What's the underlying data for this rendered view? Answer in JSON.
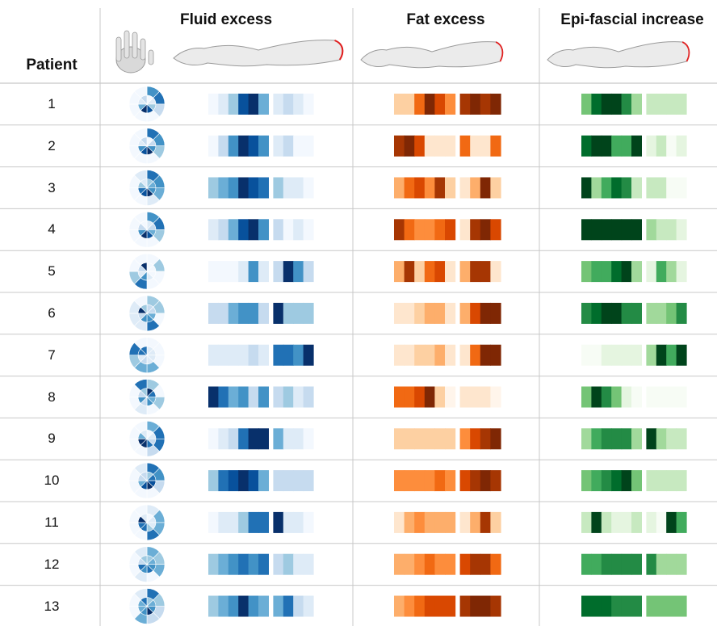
{
  "headers": {
    "patient": "Patient",
    "fluid": "Fluid excess",
    "fat": "Fat excess",
    "epi": "Epi-fascial increase"
  },
  "colors": {
    "blue": [
      "#f3f8fe",
      "#deebf7",
      "#c6dbef",
      "#9ecae1",
      "#6baed6",
      "#4292c6",
      "#2171b5",
      "#08519c",
      "#08306b"
    ],
    "orange": [
      "#fff5eb",
      "#fee6ce",
      "#fdd0a2",
      "#fdae6b",
      "#fd8d3c",
      "#f16913",
      "#d94801",
      "#a63603",
      "#7f2704"
    ],
    "green": [
      "#f7fcf5",
      "#e5f5e0",
      "#c7e9c0",
      "#a1d99b",
      "#74c476",
      "#41ab5d",
      "#238b45",
      "#006d2c",
      "#00441b"
    ],
    "grid": "#c8c8c8",
    "arm_outline": "#9a9a9a",
    "arm_tip": "#e02020"
  },
  "chart_data": {
    "type": "heatmap",
    "rows": [
      "1",
      "2",
      "3",
      "4",
      "5",
      "6",
      "7",
      "8",
      "9",
      "10",
      "11",
      "12",
      "13"
    ],
    "columns": [
      "Fluid excess",
      "Fat excess",
      "Epi-fascial increase"
    ],
    "note": "Each strip: 6 cells (forearm/elbow segment), gap, 4 cells (upper arm). Intensity 0-8.",
    "fluid": [
      [
        0,
        1,
        3,
        7,
        8,
        4,
        1,
        2,
        1,
        0
      ],
      [
        0,
        2,
        5,
        8,
        7,
        5,
        1,
        2,
        0,
        0
      ],
      [
        3,
        4,
        5,
        8,
        7,
        6,
        3,
        1,
        1,
        0
      ],
      [
        1,
        2,
        4,
        7,
        8,
        5,
        2,
        0,
        1,
        0
      ],
      [
        0,
        0,
        0,
        1,
        5,
        1,
        2,
        8,
        5,
        2
      ],
      [
        2,
        2,
        4,
        5,
        5,
        2,
        8,
        3,
        3,
        3
      ],
      [
        1,
        1,
        1,
        1,
        2,
        1,
        6,
        6,
        5,
        8
      ],
      [
        8,
        6,
        4,
        5,
        2,
        5,
        2,
        3,
        1,
        2
      ],
      [
        0,
        1,
        2,
        6,
        8,
        8,
        4,
        1,
        1,
        0
      ],
      [
        3,
        6,
        7,
        8,
        7,
        4,
        2,
        2,
        2,
        2
      ],
      [
        0,
        1,
        1,
        3,
        6,
        6,
        8,
        1,
        1,
        0
      ],
      [
        3,
        4,
        5,
        6,
        5,
        6,
        2,
        3,
        1,
        1
      ],
      [
        3,
        4,
        5,
        8,
        5,
        4,
        4,
        6,
        2,
        1
      ]
    ],
    "fat": [
      [
        2,
        2,
        5,
        8,
        6,
        4,
        7,
        8,
        7,
        8
      ],
      [
        7,
        8,
        6,
        1,
        1,
        1,
        5,
        1,
        1,
        5
      ],
      [
        3,
        5,
        6,
        4,
        7,
        2,
        1,
        3,
        8,
        2
      ],
      [
        7,
        5,
        4,
        4,
        5,
        6,
        1,
        7,
        8,
        6
      ],
      [
        3,
        7,
        2,
        5,
        6,
        1,
        3,
        7,
        7,
        1
      ],
      [
        1,
        1,
        2,
        3,
        3,
        1,
        3,
        6,
        8,
        8
      ],
      [
        1,
        1,
        2,
        2,
        3,
        1,
        1,
        5,
        8,
        8
      ],
      [
        5,
        5,
        6,
        8,
        2,
        0,
        1,
        1,
        1,
        0
      ],
      [
        2,
        2,
        2,
        2,
        2,
        2,
        4,
        6,
        7,
        8
      ],
      [
        4,
        4,
        4,
        4,
        5,
        4,
        6,
        7,
        8,
        7
      ],
      [
        1,
        3,
        4,
        3,
        3,
        3,
        1,
        3,
        7,
        2
      ],
      [
        3,
        3,
        4,
        5,
        4,
        4,
        6,
        7,
        7,
        5
      ],
      [
        3,
        4,
        5,
        6,
        6,
        6,
        7,
        8,
        8,
        7
      ]
    ],
    "epi": [
      [
        4,
        7,
        8,
        8,
        6,
        3,
        2,
        2,
        2,
        2
      ],
      [
        7,
        8,
        8,
        5,
        5,
        8,
        1,
        2,
        0,
        1
      ],
      [
        8,
        3,
        5,
        7,
        6,
        2,
        2,
        2,
        0,
        0
      ],
      [
        8,
        8,
        8,
        8,
        8,
        8,
        3,
        2,
        2,
        1
      ],
      [
        4,
        5,
        5,
        7,
        8,
        3,
        1,
        5,
        3,
        1
      ],
      [
        6,
        7,
        8,
        8,
        6,
        6,
        3,
        3,
        4,
        6
      ],
      [
        0,
        0,
        1,
        1,
        1,
        1,
        3,
        8,
        5,
        8
      ],
      [
        4,
        8,
        6,
        4,
        1,
        0,
        0,
        0,
        0,
        0
      ],
      [
        3,
        5,
        6,
        6,
        6,
        3,
        8,
        3,
        2,
        2
      ],
      [
        4,
        5,
        6,
        7,
        8,
        4,
        2,
        2,
        2,
        2
      ],
      [
        2,
        8,
        2,
        1,
        1,
        2,
        1,
        0,
        8,
        5
      ],
      [
        5,
        5,
        6,
        6,
        6,
        6,
        6,
        3,
        3,
        3
      ],
      [
        7,
        7,
        7,
        6,
        6,
        6,
        4,
        4,
        4,
        4
      ]
    ]
  }
}
